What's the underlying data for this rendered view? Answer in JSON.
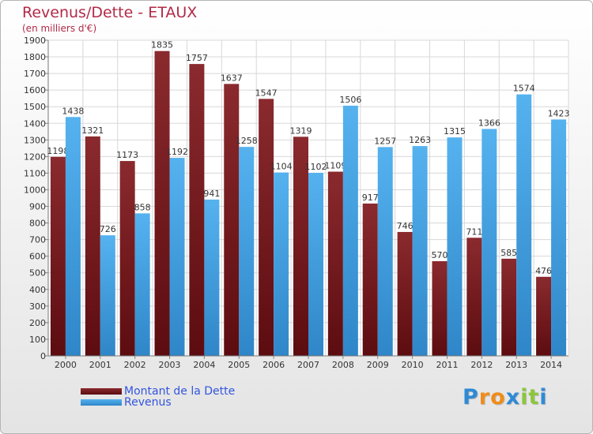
{
  "title": "Revenus/Dette - ETAUX",
  "subtitle": "(en milliers d'€)",
  "colors": {
    "dette": "#7a1a1e",
    "revenus": "#3d9ee0",
    "title": "#b22a47",
    "legend_text": "#3355dd"
  },
  "legend": {
    "dette_label": "Montant de la Dette",
    "revenus_label": "Revenus"
  },
  "logo": {
    "letters": [
      "P",
      "r",
      "o",
      "x",
      "i",
      "t",
      "i"
    ],
    "colors": [
      "#2e8ad6",
      "#f08c1a",
      "#f08c1a",
      "#2e8ad6",
      "#8cc63f",
      "#8cc63f",
      "#2e8ad6"
    ]
  },
  "chart_data": {
    "type": "bar",
    "categories": [
      "2000",
      "2001",
      "2002",
      "2003",
      "2004",
      "2005",
      "2006",
      "2007",
      "2008",
      "2009",
      "2010",
      "2011",
      "2012",
      "2013",
      "2014"
    ],
    "series": [
      {
        "name": "Montant de la Dette",
        "values": [
          1198,
          1321,
          1173,
          1835,
          1757,
          1637,
          1547,
          1319,
          1109,
          917,
          746,
          570,
          711,
          585,
          476
        ],
        "labels": [
          "1198",
          "1321",
          "1173",
          "1835",
          "1757",
          "1637",
          "1547",
          "1319",
          "1109",
          "917",
          "746",
          "570",
          "711",
          "585",
          "476"
        ]
      },
      {
        "name": "Revenus",
        "values": [
          1438,
          726,
          858,
          1192,
          941,
          1258,
          1104,
          1102,
          1506,
          1257,
          1263,
          1315,
          1366,
          1574,
          1423
        ],
        "labels": [
          "1438",
          "726",
          "858",
          "1192",
          "941",
          "1258",
          "1104",
          "1102",
          "1506",
          "1257",
          "1263",
          "1315",
          "1366",
          "1574",
          "1423"
        ]
      }
    ],
    "ylim": [
      0,
      1900
    ],
    "yticks": [
      "0",
      "100",
      "200",
      "300",
      "400",
      "500",
      "600",
      "700",
      "800",
      "900",
      "1000",
      "1100",
      "1200",
      "1300",
      "1400",
      "1500",
      "1600",
      "1700",
      "1800",
      "1900"
    ],
    "title": "Revenus/Dette - ETAUX",
    "xlabel": "",
    "ylabel": "",
    "grid": true,
    "legend": "bottom-left"
  }
}
